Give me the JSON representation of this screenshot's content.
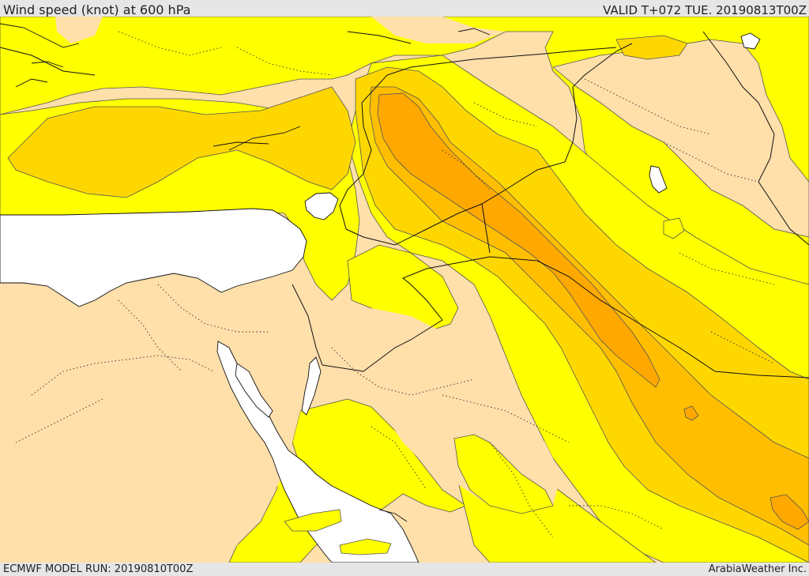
{
  "header": {
    "title": "Wind speed (knot) at 600 hPa",
    "valid_time": "VALID T+072 TUE. 20190813T00Z"
  },
  "footer": {
    "model_run": "ECMWF MODEL RUN: 20190810T00Z",
    "credit": "ArabiaWeather Inc."
  },
  "map": {
    "variable": "wind speed",
    "unit": "knot",
    "level": "600 hPa",
    "colors": {
      "calm_land": "#ffdfaa",
      "band_1": "#ffff00",
      "band_2": "#ffd700",
      "band_3": "#ffbe00",
      "band_4": "#ffa800",
      "sea": "#ffffff",
      "contour": "#555555",
      "border": "#111111"
    }
  }
}
